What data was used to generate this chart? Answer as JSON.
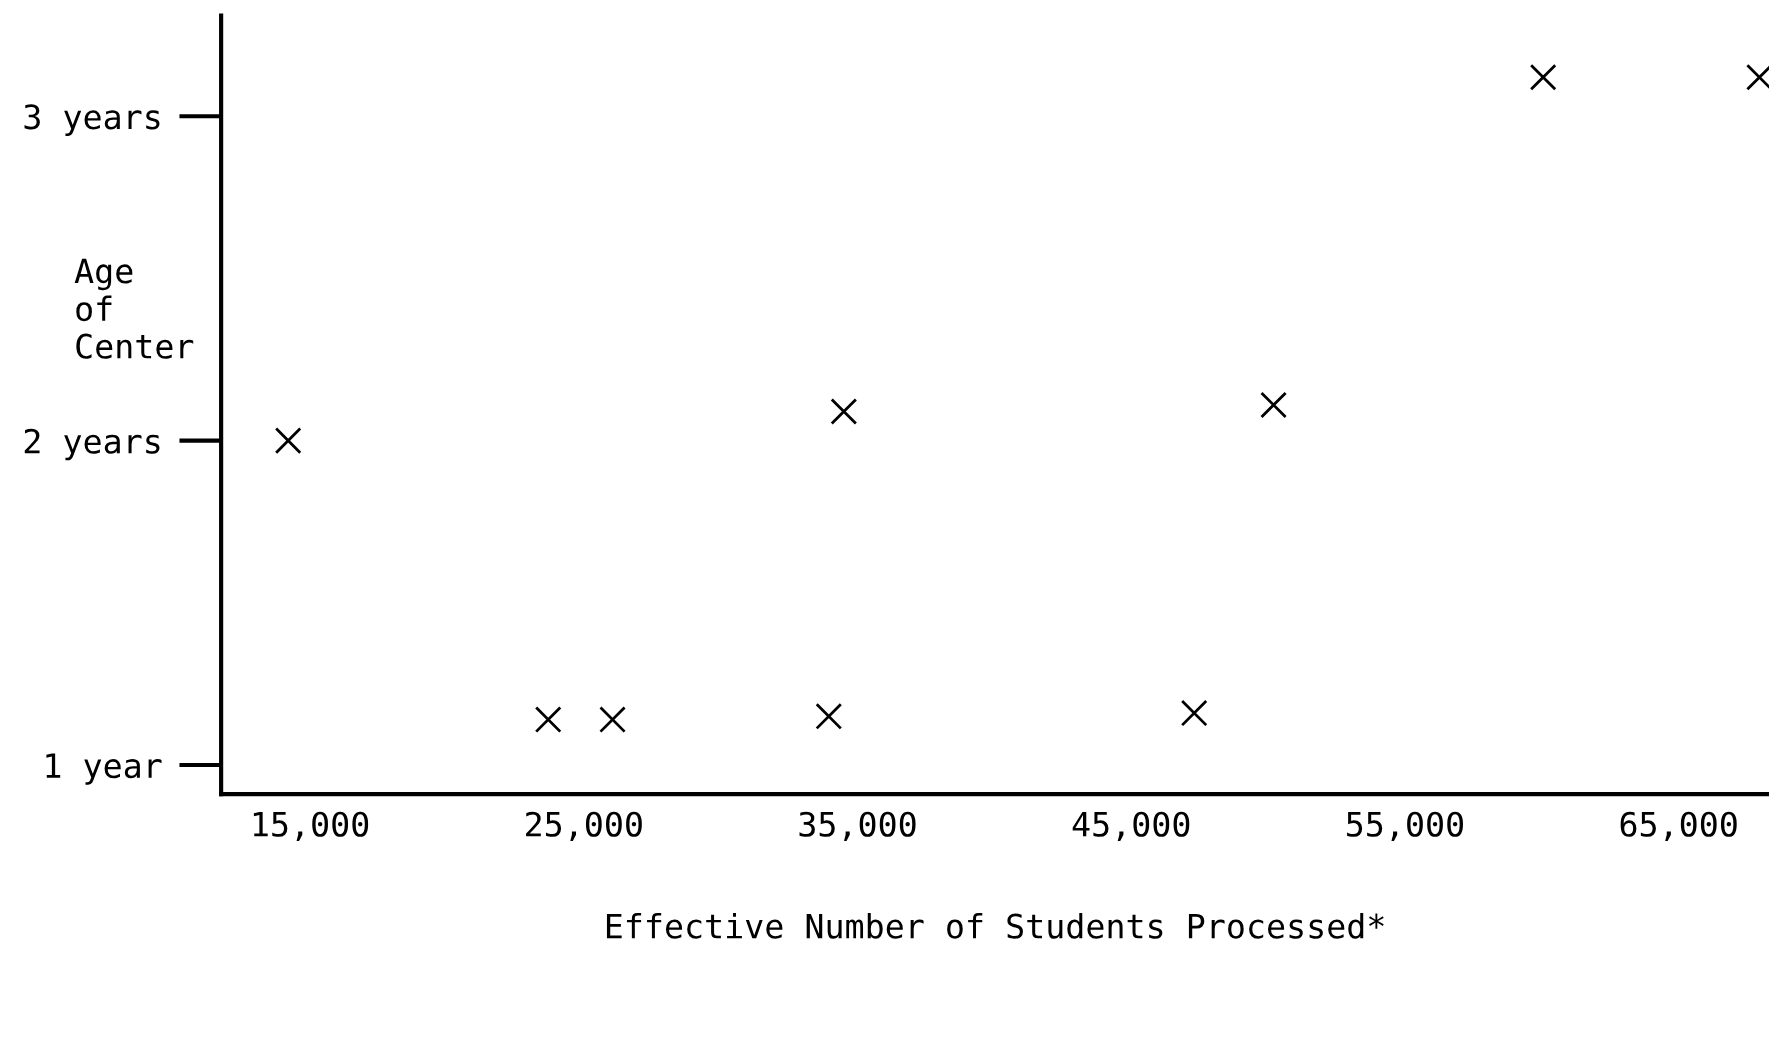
{
  "chart_data": {
    "type": "scatter",
    "xlabel": "Effective Number of Students Processed*",
    "ylabel": "Age\nof\nCenter",
    "x": [
      14200,
      23700,
      26050,
      33950,
      34500,
      47300,
      50200,
      60050,
      67950
    ],
    "values": [
      2.0,
      1.14,
      1.14,
      1.15,
      2.09,
      1.16,
      2.11,
      3.12,
      3.12
    ],
    "color": "#000000",
    "marker": "cross",
    "grid": false,
    "xlim": [
      11750,
      68300
    ],
    "ylim": [
      0.91,
      3.31
    ],
    "xticks": [
      {
        "value": 15000,
        "label": "15,000"
      },
      {
        "value": 25000,
        "label": "25,000"
      },
      {
        "value": 35000,
        "label": "35,000"
      },
      {
        "value": 45000,
        "label": "45,000"
      },
      {
        "value": 55000,
        "label": "55,000"
      },
      {
        "value": 65000,
        "label": "65,000"
      }
    ],
    "yticks": [
      {
        "value": 1,
        "label": "1 year"
      },
      {
        "value": 2,
        "label": "2 years"
      },
      {
        "value": 3,
        "label": "3 years"
      }
    ]
  }
}
